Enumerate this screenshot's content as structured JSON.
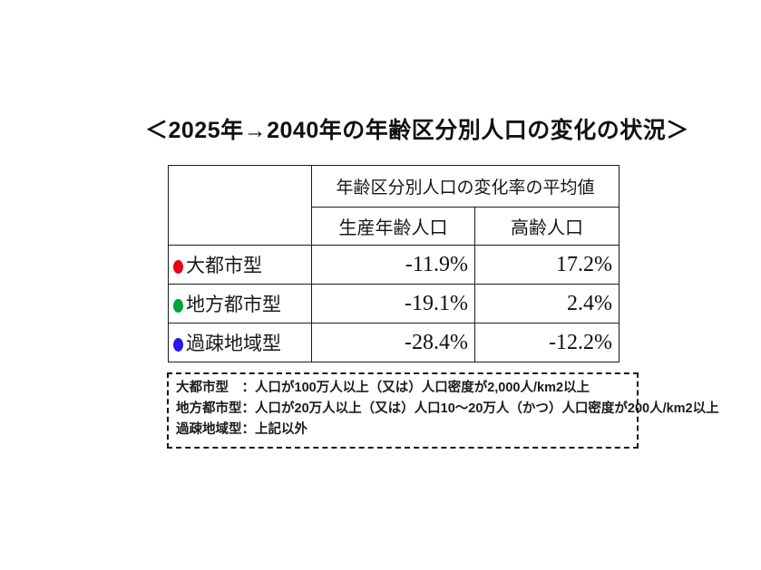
{
  "page": {
    "title": "＜2025年→2040年の年齢区分別人口の変化の状況＞"
  },
  "table": {
    "merged_header": "年齢区分別人口の変化率の平均値",
    "columns": {
      "working_age": "生産年齢人口",
      "elderly": "高齢人口"
    },
    "rows": [
      {
        "label": "大都市型",
        "bullet_color": "#e60017",
        "working_age": "-11.9%",
        "elderly": "17.2%"
      },
      {
        "label": "地方都市型",
        "bullet_color": "#00a23e",
        "working_age": "-19.1%",
        "elderly": "2.4%"
      },
      {
        "label": "過疎地域型",
        "bullet_color": "#2318ee",
        "working_age": "-28.4%",
        "elderly": "-12.2%"
      }
    ]
  },
  "legend_note": {
    "lines": [
      "大都市型　：人口が100万人以上（又は）人口密度が2,000人/km2以上",
      "地方都市型：人口が20万人以上（又は）人口10～20万人（かつ）人口密度が200人/km2以上",
      "過疎地域型：上記以外"
    ]
  },
  "chart_data": {
    "type": "table",
    "title": "＜2025年→2040年の年齢区分別人口の変化の状況＞",
    "column_group_header": "年齢区分別人口の変化率の平均値",
    "columns": [
      "生産年齢人口",
      "高齢人口"
    ],
    "unit": "percent",
    "rows": [
      {
        "category": "大都市型",
        "marker_color": "#e60017",
        "values": [
          -11.9,
          17.2
        ]
      },
      {
        "category": "地方都市型",
        "marker_color": "#00a23e",
        "values": [
          -19.1,
          2.4
        ]
      },
      {
        "category": "過疎地域型",
        "marker_color": "#2318ee",
        "values": [
          -28.4,
          -12.2
        ]
      }
    ],
    "notes": [
      "大都市型：人口が100万人以上（又は）人口密度が2,000人/km2以上",
      "地方都市型：人口が20万人以上（又は）人口10～20万人（かつ）人口密度が200人/km2以上",
      "過疎地域型：上記以外"
    ]
  }
}
